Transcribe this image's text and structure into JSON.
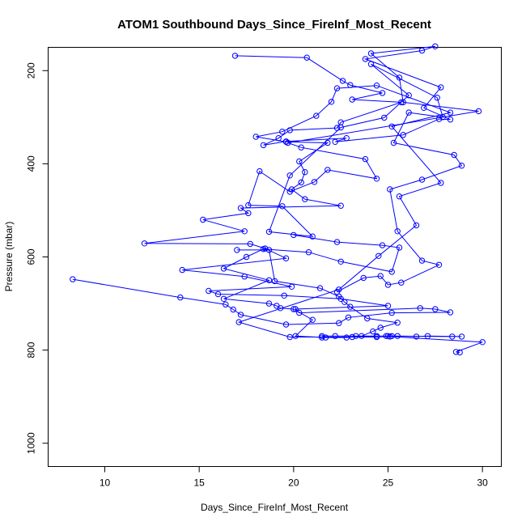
{
  "chart_data": {
    "type": "line",
    "title": "ATOM1 Southbound Days_Since_FireInf_Most_Recent",
    "xlabel": "Days_Since_FireInf_Most_Recent",
    "ylabel": "Pressure (mbar)",
    "xlim": [
      7,
      31
    ],
    "ylim": [
      1050,
      150
    ],
    "y_reversed": true,
    "grid": false,
    "legend": "none",
    "color": "#0000ff",
    "x_ticks": [
      10,
      15,
      20,
      25,
      30
    ],
    "y_ticks": [
      200,
      400,
      600,
      800,
      1000
    ],
    "series": [
      {
        "points": [
          [
            8.3,
            648
          ],
          [
            14.0,
            687
          ],
          [
            16.4,
            702
          ],
          [
            16.8,
            713
          ],
          [
            17.2,
            724
          ],
          [
            19.6,
            745
          ],
          [
            22.4,
            742
          ],
          [
            22.9,
            730
          ],
          [
            25.2,
            720
          ],
          [
            28.3,
            719
          ],
          [
            27.5,
            712
          ],
          [
            26.7,
            710
          ],
          [
            20.3,
            720
          ],
          [
            20.1,
            712
          ],
          [
            25.0,
            705
          ],
          [
            22.5,
            690
          ],
          [
            19.5,
            683
          ],
          [
            16.0,
            680
          ],
          [
            15.5,
            673
          ],
          [
            19.9,
            664
          ],
          [
            17.4,
            642
          ],
          [
            14.1,
            628
          ],
          [
            19.6,
            603
          ],
          [
            18.5,
            582
          ],
          [
            17.7,
            572
          ],
          [
            12.1,
            571
          ],
          [
            17.4,
            545
          ],
          [
            15.2,
            520
          ],
          [
            17.6,
            506
          ],
          [
            17.2,
            495
          ],
          [
            22.5,
            490
          ],
          [
            20.6,
            476
          ],
          [
            19.9,
            455
          ],
          [
            20.4,
            440
          ],
          [
            20.6,
            418
          ],
          [
            20.3,
            395
          ],
          [
            21.8,
            355
          ],
          [
            19.6,
            353
          ],
          [
            18.0,
            342
          ],
          [
            19.4,
            331
          ],
          [
            21.2,
            297
          ],
          [
            22.0,
            267
          ],
          [
            22.3,
            238
          ],
          [
            24.4,
            232
          ],
          [
            28.3,
            290
          ],
          [
            25.2,
            320
          ],
          [
            27.8,
            441
          ],
          [
            25.6,
            470
          ],
          [
            26.5,
            532
          ],
          [
            24.5,
            598
          ],
          [
            22.4,
            670
          ],
          [
            17.1,
            740
          ],
          [
            19.8,
            772
          ],
          [
            24.4,
            772
          ],
          [
            25.1,
            771
          ],
          [
            30.0,
            783
          ],
          [
            28.6,
            804
          ],
          [
            28.8,
            805
          ]
        ]
      },
      {
        "points": [
          [
            16.9,
            168
          ],
          [
            20.7,
            172
          ],
          [
            22.6,
            222
          ],
          [
            23.0,
            231
          ],
          [
            24.7,
            248
          ],
          [
            23.1,
            262
          ],
          [
            25.7,
            268
          ],
          [
            22.5,
            311
          ],
          [
            22.3,
            323
          ],
          [
            19.8,
            328
          ],
          [
            19.2,
            345
          ],
          [
            18.4,
            360
          ],
          [
            19.6,
            352
          ],
          [
            22.8,
            345
          ],
          [
            22.2,
            353
          ],
          [
            25.8,
            338
          ],
          [
            27.7,
            304
          ],
          [
            28.3,
            305
          ],
          [
            26.9,
            280
          ],
          [
            27.8,
            236
          ],
          [
            23.8,
            175
          ],
          [
            26.8,
            157
          ],
          [
            27.5,
            148
          ],
          [
            24.1,
            163
          ],
          [
            25.6,
            215
          ],
          [
            25.8,
            268
          ],
          [
            29.8,
            287
          ],
          [
            19.7,
            355
          ],
          [
            20.4,
            365
          ],
          [
            23.8,
            390
          ],
          [
            24.4,
            432
          ],
          [
            21.8,
            413
          ],
          [
            21.1,
            439
          ],
          [
            19.8,
            460
          ],
          [
            18.2,
            416
          ],
          [
            17.6,
            489
          ],
          [
            19.4,
            491
          ],
          [
            21.0,
            556
          ],
          [
            18.7,
            546
          ],
          [
            19.8,
            425
          ],
          [
            22.5,
            322
          ],
          [
            24.8,
            301
          ],
          [
            26.1,
            253
          ],
          [
            24.1,
            186
          ],
          [
            27.6,
            258
          ],
          [
            27.9,
            300
          ],
          [
            26.1,
            290
          ],
          [
            25.3,
            355
          ],
          [
            28.5,
            381
          ],
          [
            28.9,
            404
          ],
          [
            26.8,
            434
          ],
          [
            25.1,
            455
          ],
          [
            25.5,
            545
          ],
          [
            26.8,
            608
          ],
          [
            27.7,
            617
          ],
          [
            25.7,
            655
          ],
          [
            25.0,
            660
          ],
          [
            24.6,
            641
          ],
          [
            23.7,
            645
          ],
          [
            22.3,
            675
          ]
        ]
      },
      {
        "points": [
          [
            17.0,
            585
          ],
          [
            18.7,
            585
          ],
          [
            19.0,
            652
          ],
          [
            21.4,
            667
          ],
          [
            22.4,
            685
          ],
          [
            22.7,
            697
          ],
          [
            23.0,
            707
          ],
          [
            23.9,
            732
          ],
          [
            25.5,
            741
          ],
          [
            24.6,
            752
          ],
          [
            24.2,
            760
          ],
          [
            23.6,
            770
          ],
          [
            23.3,
            770
          ],
          [
            22.2,
            770
          ],
          [
            21.5,
            770
          ],
          [
            24.9,
            770
          ],
          [
            25.2,
            770
          ],
          [
            25.5,
            770
          ],
          [
            28.4,
            771
          ],
          [
            28.9,
            771
          ],
          [
            27.1,
            770
          ],
          [
            26.5,
            771
          ],
          [
            25.0,
            770
          ],
          [
            24.4,
            770
          ],
          [
            23.1,
            772
          ],
          [
            22.8,
            773
          ],
          [
            21.5,
            773
          ],
          [
            21.7,
            773
          ],
          [
            20.1,
            770
          ],
          [
            21.0,
            735
          ],
          [
            20.0,
            712
          ],
          [
            19.3,
            710
          ],
          [
            19.1,
            705
          ],
          [
            18.7,
            700
          ],
          [
            16.3,
            690
          ],
          [
            18.7,
            650
          ],
          [
            16.3,
            625
          ],
          [
            17.5,
            600
          ],
          [
            18.4,
            583
          ],
          [
            20.8,
            590
          ],
          [
            22.5,
            610
          ],
          [
            25.2,
            632
          ],
          [
            25.6,
            580
          ],
          [
            24.7,
            575
          ],
          [
            22.3,
            568
          ],
          [
            20.0,
            553
          ]
        ]
      }
    ]
  }
}
